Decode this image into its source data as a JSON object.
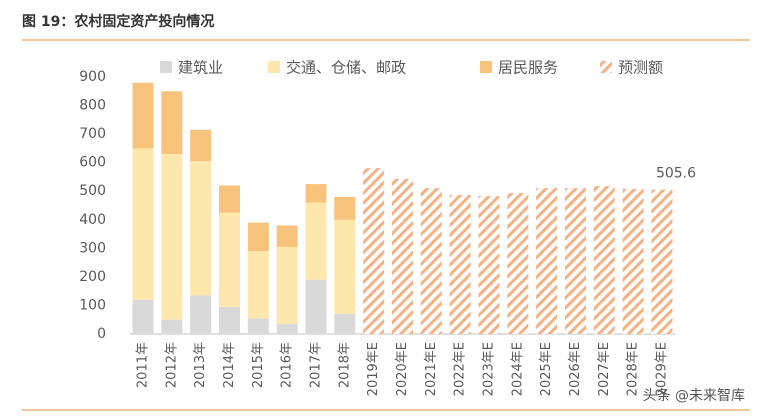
{
  "chart_data": {
    "type": "stacked-bar",
    "title": "图 19：农村固定资产投向情况",
    "categories": [
      "2011年",
      "2012年",
      "2013年",
      "2014年",
      "2015年",
      "2016年",
      "2017年",
      "2018年",
      "2019年E",
      "2020年E",
      "2021年E",
      "2022年E",
      "2023年E",
      "2024年E",
      "2025年E",
      "2026年E",
      "2027年E",
      "2028年E",
      "2029年E"
    ],
    "series": [
      {
        "name": "建筑业",
        "color": "#d9d9d9",
        "values": [
          120,
          50,
          135,
          95,
          55,
          35,
          190,
          70,
          null,
          null,
          null,
          null,
          null,
          null,
          null,
          null,
          null,
          null,
          null
        ]
      },
      {
        "name": "交通、仓储、邮政",
        "color": "#fde7ad",
        "values": [
          530,
          580,
          470,
          330,
          235,
          270,
          270,
          330,
          null,
          null,
          null,
          null,
          null,
          null,
          null,
          null,
          null,
          null,
          null
        ]
      },
      {
        "name": "居民服务",
        "color": "#f7c27c",
        "values": [
          230,
          220,
          110,
          95,
          100,
          75,
          65,
          80,
          null,
          null,
          null,
          null,
          null,
          null,
          null,
          null,
          null,
          null,
          null
        ]
      },
      {
        "name": "预测额",
        "color": "#f4b183",
        "pattern": "hatch",
        "values": [
          null,
          null,
          null,
          null,
          null,
          null,
          null,
          null,
          581,
          543,
          511,
          487,
          483,
          494,
          511,
          511,
          518,
          508,
          505.6
        ],
        "value_labels": [
          null,
          null,
          null,
          null,
          null,
          null,
          null,
          null,
          null,
          null,
          null,
          null,
          null,
          null,
          null,
          null,
          null,
          null,
          "505.6"
        ]
      }
    ],
    "ylim": [
      0,
      900
    ],
    "yticks": [
      0,
      100,
      200,
      300,
      400,
      500,
      600,
      700,
      800,
      900
    ],
    "grid": false,
    "watermark": "头条 @未来智库"
  }
}
